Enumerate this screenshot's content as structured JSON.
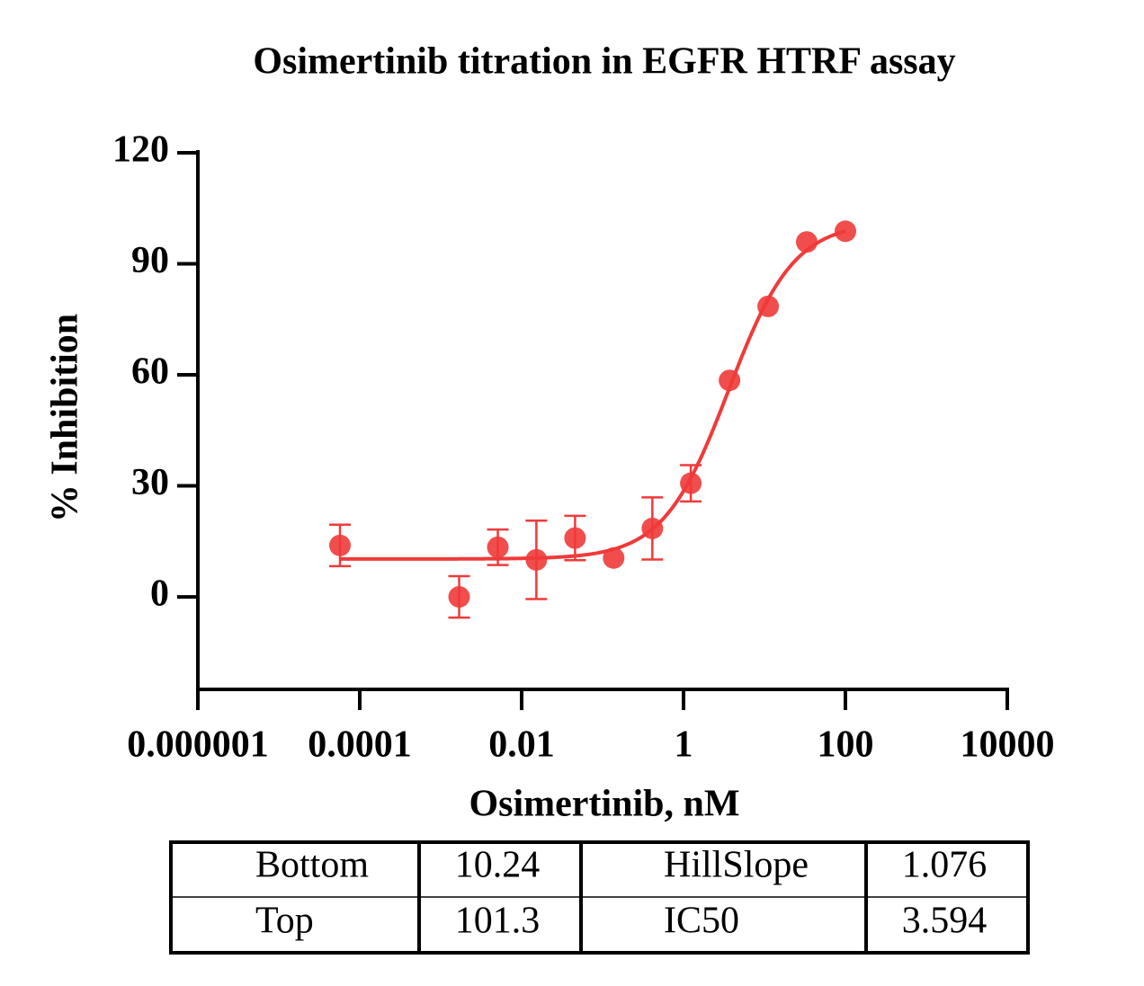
{
  "chart_data": {
    "type": "scatter",
    "title": "Osimertinib titration in EGFR HTRF assay",
    "x_label": "Osimertinib, nM",
    "y_label": "% Inhibition",
    "x_scale": "log",
    "xlim": [
      1e-06,
      10000
    ],
    "xticks": [
      1e-06,
      0.0001,
      0.01,
      1,
      100,
      10000
    ],
    "ylim": [
      -25,
      120
    ],
    "yticks": [
      0,
      30,
      60,
      90,
      120
    ],
    "color": "#f03a3a",
    "x": [
      5.7e-05,
      0.00169,
      0.00508,
      0.0152,
      0.0457,
      0.137,
      0.412,
      1.23,
      3.7,
      11.1,
      33.3,
      100
    ],
    "values": [
      13.9,
      0.0,
      13.4,
      10.0,
      15.9,
      10.5,
      18.5,
      30.7,
      58.5,
      78.5,
      95.9,
      98.8
    ],
    "errors": [
      5.6,
      5.6,
      4.8,
      10.6,
      6.0,
      null,
      8.4,
      4.9,
      null,
      null,
      null,
      null
    ]
  },
  "table": {
    "rows": [
      [
        "Bottom",
        10.24,
        "HillSlope",
        1.076
      ],
      [
        "Top",
        101.3,
        "IC50",
        3.594
      ]
    ]
  }
}
